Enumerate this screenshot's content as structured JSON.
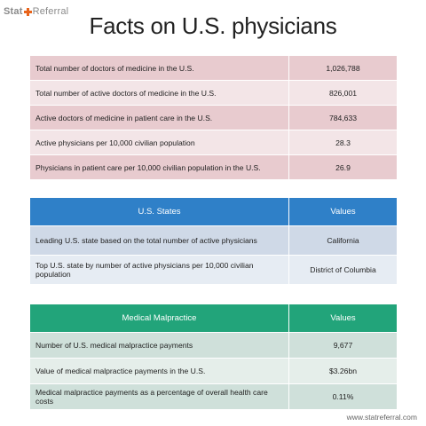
{
  "logo": {
    "left": "Stat",
    "right": "Referral"
  },
  "title": "Facts on U.S. physicians",
  "physicians": {
    "rows": [
      {
        "label": "Total number of doctors of medicine in the U.S.",
        "value": "1,026,788"
      },
      {
        "label": "Total number of active doctors of medicine in the U.S.",
        "value": "826,001"
      },
      {
        "label": "Active doctors of medicine in patient care in the U.S.",
        "value": "784,633"
      },
      {
        "label": "Active physicians per 10,000 civilian population",
        "value": "28.3"
      },
      {
        "label": "Physicians in patient care per 10,000 civilian population in the U.S.",
        "value": "26.9"
      }
    ]
  },
  "states": {
    "header": {
      "label": "U.S. States",
      "value": "Values"
    },
    "rows": [
      {
        "label": "Leading U.S. state based on the total number of active physicians",
        "value": "California"
      },
      {
        "label": "Top U.S. state by number of active physicians per 10,000 civilian population",
        "value": "District of Columbia"
      }
    ]
  },
  "malpractice": {
    "header": {
      "label": "Medical Malpractice",
      "value": "Values"
    },
    "rows": [
      {
        "label": "Number of U.S. medical malpractice payments",
        "value": "9,677"
      },
      {
        "label": "Value of medical malpractice payments in the U.S.",
        "value": "$3.26bn"
      },
      {
        "label": "Medical malpractice payments as a percentage of overall health care costs",
        "value": "0.11%"
      }
    ]
  },
  "footer": "www.statreferral.com",
  "colors": {
    "physicians_odd": "#e8cbcf",
    "physicians_even": "#f3e5e7",
    "states_header": "#2f80c8",
    "malpractice_header": "#22a47a",
    "logo_plus": "#e8641b"
  }
}
